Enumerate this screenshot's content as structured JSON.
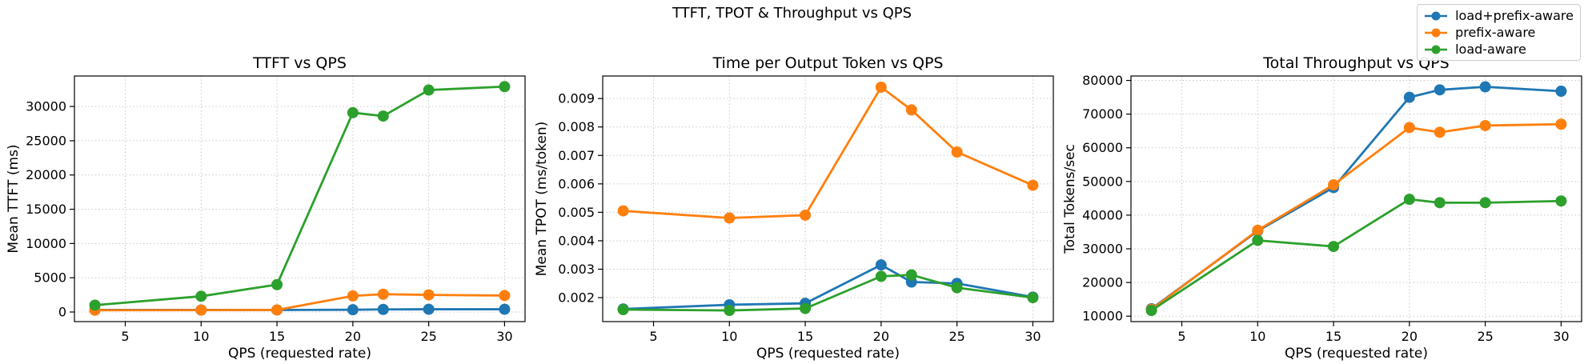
{
  "figure": {
    "suptitle": "TTFT, TPOT & Throughput vs QPS",
    "background": "#ffffff",
    "grid_color": "#c8c8c8",
    "frame_color": "#000000"
  },
  "legend": {
    "items": [
      {
        "label": "load+prefix-aware",
        "color": "#1f77b4"
      },
      {
        "label": "prefix-aware",
        "color": "#ff7f0e"
      },
      {
        "label": "load-aware",
        "color": "#2ca02c"
      }
    ]
  },
  "chart_data": [
    {
      "type": "line",
      "title": "TTFT vs QPS",
      "xlabel": "QPS (requested rate)",
      "ylabel": "Mean TTFT (ms)",
      "grid": true,
      "legend_position": "figure-top-right",
      "x": [
        3,
        10,
        15,
        20,
        22,
        25,
        30
      ],
      "xticks": [
        5,
        10,
        15,
        20,
        25,
        30
      ],
      "xlim": [
        1.65,
        31.35
      ],
      "ylim": [
        -1400,
        34450
      ],
      "yticks": [
        0,
        5000,
        10000,
        15000,
        20000,
        25000,
        30000
      ],
      "ytick_labels": [
        "0",
        "5000",
        "10000",
        "15000",
        "20000",
        "25000",
        "30000"
      ],
      "series": [
        {
          "name": "load+prefix-aware",
          "color": "#1f77b4",
          "values": [
            300,
            300,
            300,
            330,
            380,
            400,
            400
          ]
        },
        {
          "name": "prefix-aware",
          "color": "#ff7f0e",
          "values": [
            260,
            280,
            300,
            2350,
            2600,
            2500,
            2400
          ]
        },
        {
          "name": "load-aware",
          "color": "#2ca02c",
          "values": [
            1000,
            2300,
            4000,
            29100,
            28600,
            32400,
            32900
          ]
        }
      ]
    },
    {
      "type": "line",
      "title": "Time per Output Token vs QPS",
      "xlabel": "QPS (requested rate)",
      "ylabel": "Mean TPOT (ms/token)",
      "grid": true,
      "x": [
        3,
        10,
        15,
        20,
        22,
        25,
        30
      ],
      "xticks": [
        5,
        10,
        15,
        20,
        25,
        30
      ],
      "xlim": [
        1.65,
        31.35
      ],
      "ylim": [
        0.001158,
        0.009792
      ],
      "yticks": [
        0.002,
        0.003,
        0.004,
        0.005,
        0.006,
        0.007,
        0.008,
        0.009
      ],
      "ytick_labels": [
        "0.002",
        "0.003",
        "0.004",
        "0.005",
        "0.006",
        "0.007",
        "0.008",
        "0.009"
      ],
      "series": [
        {
          "name": "load+prefix-aware",
          "color": "#1f77b4",
          "values": [
            0.0016,
            0.00175,
            0.0018,
            0.00315,
            0.00255,
            0.0025,
            0.00202
          ]
        },
        {
          "name": "prefix-aware",
          "color": "#ff7f0e",
          "values": [
            0.00505,
            0.0048,
            0.0049,
            0.0094,
            0.0086,
            0.00712,
            0.00595
          ]
        },
        {
          "name": "load-aware",
          "color": "#2ca02c",
          "values": [
            0.00158,
            0.00155,
            0.00162,
            0.00275,
            0.0028,
            0.00235,
            0.002
          ]
        }
      ]
    },
    {
      "type": "line",
      "title": "Total Throughput vs QPS",
      "xlabel": "QPS (requested rate)",
      "ylabel": "Total Tokens/sec",
      "grid": true,
      "x": [
        3,
        10,
        15,
        20,
        22,
        25,
        30
      ],
      "xticks": [
        5,
        10,
        15,
        20,
        25,
        30
      ],
      "xlim": [
        1.65,
        31.35
      ],
      "ylim": [
        8385,
        81315
      ],
      "yticks": [
        10000,
        20000,
        30000,
        40000,
        50000,
        60000,
        70000,
        80000
      ],
      "ytick_labels": [
        "10000",
        "20000",
        "30000",
        "40000",
        "50000",
        "60000",
        "70000",
        "80000"
      ],
      "series": [
        {
          "name": "load+prefix-aware",
          "color": "#1f77b4",
          "values": [
            12200,
            35300,
            48200,
            75000,
            77200,
            78100,
            76800
          ]
        },
        {
          "name": "prefix-aware",
          "color": "#ff7f0e",
          "values": [
            12000,
            35500,
            49000,
            66000,
            64600,
            66600,
            67000
          ]
        },
        {
          "name": "load-aware",
          "color": "#2ca02c",
          "values": [
            11700,
            32500,
            30700,
            44700,
            43700,
            43700,
            44200
          ]
        }
      ]
    }
  ]
}
